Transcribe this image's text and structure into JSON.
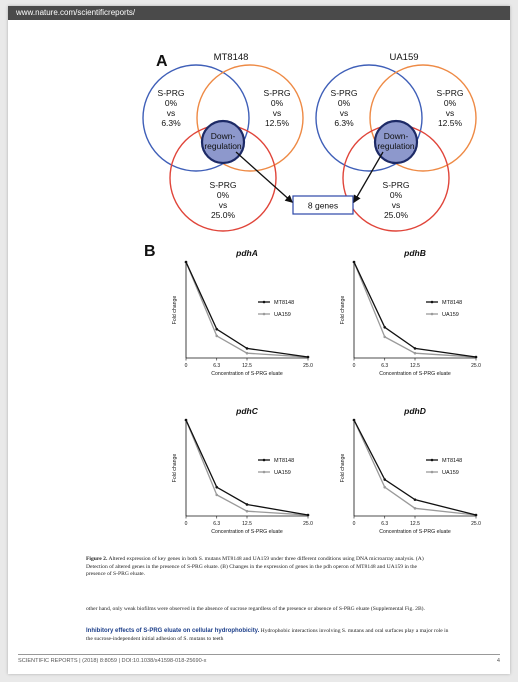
{
  "header": {
    "url": "www.nature.com/scientificreports/"
  },
  "figure": {
    "panelA": {
      "label": "A",
      "venns": [
        {
          "strain": "MT8148",
          "top_left": [
            "S-PRG",
            "0%",
            "vs",
            "6.3%"
          ],
          "top_right": [
            "S-PRG",
            "0%",
            "vs",
            "12.5%"
          ],
          "bottom": [
            "S-PRG",
            "0%",
            "vs",
            "25.0%"
          ],
          "center": [
            "Down-",
            "regulation"
          ]
        },
        {
          "strain": "UA159",
          "top_left": [
            "S-PRG",
            "0%",
            "vs",
            "6.3%"
          ],
          "top_right": [
            "S-PRG",
            "0%",
            "vs",
            "12.5%"
          ],
          "bottom": [
            "S-PRG",
            "0%",
            "vs",
            "25.0%"
          ],
          "center": [
            "Down-",
            "regulation"
          ]
        }
      ],
      "genes_box": "8 genes",
      "colors": {
        "blue": "#3f5fb8",
        "orange": "#ee8a45",
        "red": "#e0453a",
        "center_fill": "#8d98cc"
      }
    },
    "panelB": {
      "label": "B",
      "line_colors": {
        "MT8148": "#111111",
        "UA159": "#9a9a9a"
      }
    }
  },
  "chart_data": [
    {
      "type": "line",
      "title": "pdhA",
      "xlabel": "Concentration of S-PRG eluate",
      "ylabel": "Fold change",
      "categories": [
        "0",
        "6.3",
        "12.5",
        "25.0"
      ],
      "series": [
        {
          "name": "MT8148",
          "values": [
            1.0,
            0.3,
            0.1,
            0.01
          ]
        },
        {
          "name": "UA159",
          "values": [
            1.0,
            0.23,
            0.05,
            0.01
          ]
        }
      ],
      "ylim": [
        0,
        1
      ],
      "legend": "right"
    },
    {
      "type": "line",
      "title": "pdhB",
      "xlabel": "Concentration of S-PRG eluate",
      "ylabel": "Fold change",
      "categories": [
        "0",
        "6.3",
        "12.5",
        "25.0"
      ],
      "series": [
        {
          "name": "MT8148",
          "values": [
            1.0,
            0.32,
            0.1,
            0.01
          ]
        },
        {
          "name": "UA159",
          "values": [
            1.0,
            0.22,
            0.05,
            0.01
          ]
        }
      ],
      "ylim": [
        0,
        1
      ],
      "legend": "right"
    },
    {
      "type": "line",
      "title": "pdhC",
      "xlabel": "Concentration of S-PRG eluate",
      "ylabel": "Fold change",
      "categories": [
        "0",
        "6.3",
        "12.5",
        "25.0"
      ],
      "series": [
        {
          "name": "MT8148",
          "values": [
            1.0,
            0.3,
            0.12,
            0.01
          ]
        },
        {
          "name": "UA159",
          "values": [
            1.0,
            0.22,
            0.05,
            0.01
          ]
        }
      ],
      "ylim": [
        0,
        1
      ],
      "legend": "right"
    },
    {
      "type": "line",
      "title": "pdhD",
      "xlabel": "Concentration of S-PRG eluate",
      "ylabel": "Fold change",
      "categories": [
        "0",
        "6.3",
        "12.5",
        "25.0"
      ],
      "series": [
        {
          "name": "MT8148",
          "values": [
            1.0,
            0.38,
            0.17,
            0.01
          ]
        },
        {
          "name": "UA159",
          "values": [
            1.0,
            0.3,
            0.08,
            0.01
          ]
        }
      ],
      "ylim": [
        0,
        1
      ],
      "legend": "right"
    }
  ],
  "caption": {
    "label": "Figure 2.",
    "text": "Altered expression of key genes in both S. mutans MT8148 and UA159 under three different conditions using DNA microarray analysis. (A) Detection of altered genes in the presence of S-PRG eluate. (B) Changes in the expression of genes in the pdh operon of MT8148 and UA159 in the presence of S-PRG eluate."
  },
  "body": {
    "para1": "other hand, only weak biofilms were observed in the absence of sucrose regardless of the presence or absence of S-PRG eluate (Supplemental Fig. 2B).",
    "heading": "Inhibitory effects of S-PRG eluate on cellular hydrophobicity.",
    "para2": "Hydrophobic interactions involving S. mutans and oral surfaces play a major role in the sucrose-independent initial adhesion of S. mutans to teeth"
  },
  "footer": {
    "text": "SCIENTIFIC REPORTS | (2018) 8:8059 | DOI:10.1038/s41598-018-25690-x",
    "page": "4"
  }
}
